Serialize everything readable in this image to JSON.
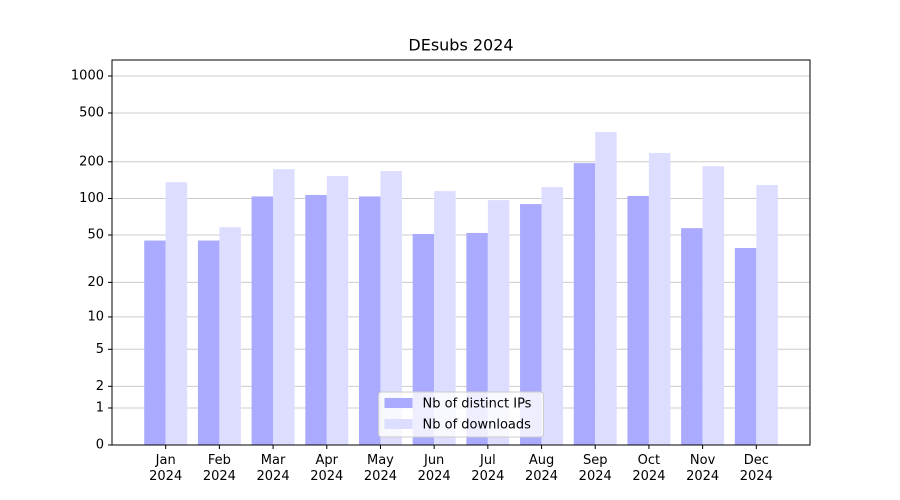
{
  "chart_data": {
    "type": "bar",
    "title": "DEsubs 2024",
    "categories": [
      "Jan 2024",
      "Feb 2024",
      "Mar 2024",
      "Apr 2024",
      "May 2024",
      "Jun 2024",
      "Jul 2024",
      "Aug 2024",
      "Sep 2024",
      "Oct 2024",
      "Nov 2024",
      "Dec 2024"
    ],
    "series": [
      {
        "name": "Nb of distinct IPs",
        "color": "#aaaaff",
        "values": [
          45,
          45,
          104,
          107,
          104,
          51,
          52,
          90,
          195,
          105,
          57,
          39
        ]
      },
      {
        "name": "Nb of downloads",
        "color": "#ddddff",
        "values": [
          136,
          58,
          174,
          153,
          168,
          115,
          97,
          124,
          350,
          236,
          184,
          129
        ]
      }
    ],
    "yscale": "log1p",
    "ylim": [
      0,
      1350
    ],
    "yticks": [
      0,
      1,
      2,
      5,
      10,
      20,
      50,
      100,
      200,
      500,
      1000
    ],
    "grid": true,
    "legend": "lower center"
  }
}
